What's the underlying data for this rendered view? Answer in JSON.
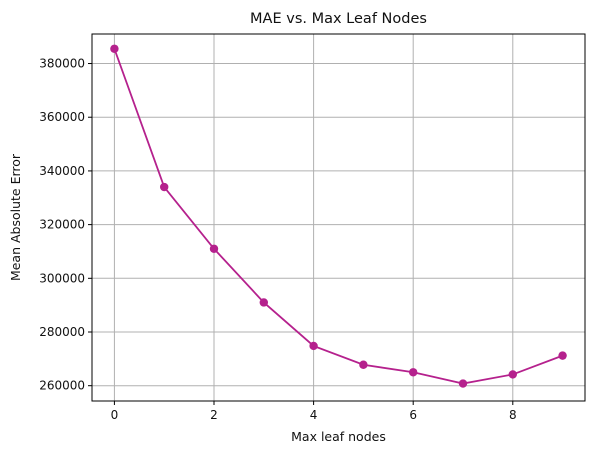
{
  "chart_data": {
    "type": "line",
    "title": "MAE vs. Max Leaf Nodes",
    "xlabel": "Max leaf nodes",
    "ylabel": "Mean Absolute Error",
    "x": [
      0,
      1,
      2,
      3,
      4,
      5,
      6,
      7,
      8,
      9
    ],
    "series": [
      {
        "values": [
          385500,
          334000,
          311000,
          291000,
          274800,
          267800,
          265000,
          260800,
          264200,
          271200
        ],
        "color": "#b5218d",
        "marker": "circle"
      }
    ],
    "xlim": [
      -0.45,
      9.45
    ],
    "ylim": [
      254300,
      391000
    ],
    "xticks": [
      0,
      2,
      4,
      6,
      8
    ],
    "xtick_labels": [
      "0",
      "2",
      "4",
      "6",
      "8"
    ],
    "yticks": [
      260000,
      280000,
      300000,
      320000,
      340000,
      360000,
      380000
    ],
    "ytick_labels": [
      "260000",
      "280000",
      "300000",
      "320000",
      "340000",
      "360000",
      "380000"
    ],
    "grid": true
  }
}
